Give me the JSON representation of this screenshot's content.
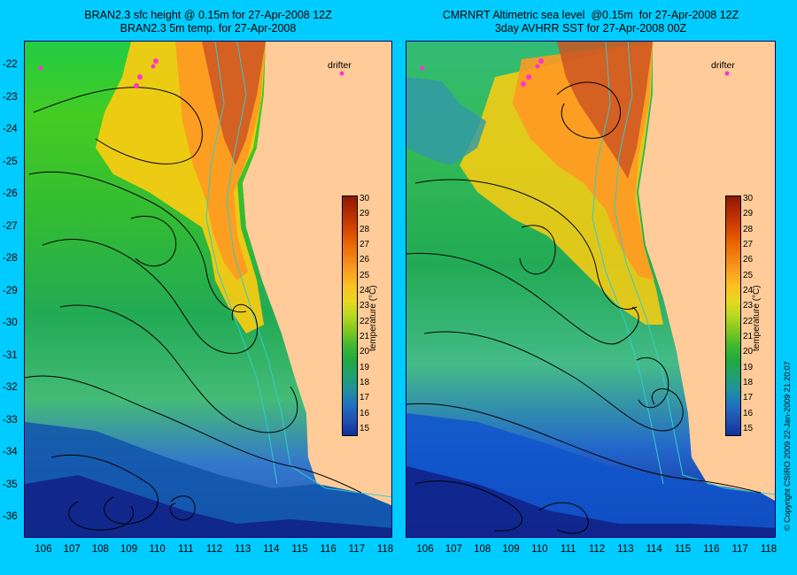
{
  "left_panel": {
    "title_line1": "BRAN2.3 sfc height @ 0.15m for 27-Apr-2008 12Z",
    "title_line2": "BRAN2.3 5m temp. for 27-Apr-2008",
    "drifter_label": "drifter"
  },
  "right_panel": {
    "title_line1": "CMRNRT Altimetric sea level  @0.15m  for 27-Apr-2008 12Z",
    "title_line2": "3day AVHRR SST for 27-Apr-2008 00Z",
    "drifter_label": "drifter"
  },
  "latitude_labels": [
    "-22",
    "-23",
    "-24",
    "-25",
    "-26",
    "-27",
    "-28",
    "-29",
    "-30",
    "-31",
    "-32",
    "-33",
    "-34",
    "-35",
    "-36"
  ],
  "longitude_labels": [
    "106",
    "107",
    "108",
    "109",
    "110",
    "111",
    "112",
    "113",
    "114",
    "115",
    "116",
    "117",
    "118"
  ],
  "colorbar": {
    "title": "temperature (°C)",
    "ticks": [
      "30",
      "29",
      "28",
      "27",
      "26",
      "25",
      "24",
      "23",
      "22",
      "21",
      "20",
      "19",
      "18",
      "17",
      "16",
      "15"
    ]
  },
  "copyright": "© Copyright CSIRO 2009   22-Jan-2009 21:20:07",
  "colors": {
    "background": "#00CCFF",
    "land": "#FFCC99",
    "contour": "#000000",
    "bathymetry": "#33CCCC",
    "drifter": "#FF33CC"
  }
}
